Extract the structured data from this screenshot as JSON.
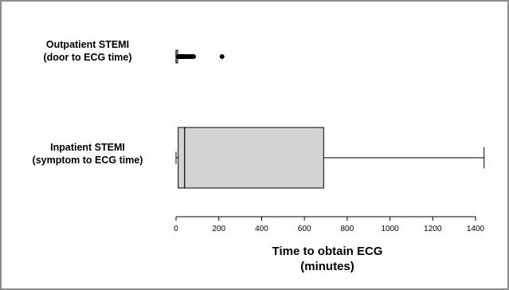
{
  "chart_data": {
    "type": "boxplot",
    "x_axis": {
      "title_lines": [
        "Time to obtain ECG",
        "(minutes)"
      ],
      "range": [
        0,
        1450
      ],
      "ticks": [
        0,
        200,
        400,
        600,
        800,
        1000,
        1200,
        1400
      ]
    },
    "categories": [
      {
        "label_lines": [
          "Outpatient STEMI",
          "(door to ECG time)"
        ],
        "min": 0,
        "q1": 0,
        "median": 0,
        "q3": 5,
        "whisker_high": 10,
        "outliers": [
          12,
          15,
          18,
          20,
          22,
          25,
          28,
          30,
          33,
          36,
          40,
          45,
          50,
          55,
          60,
          68,
          75,
          82,
          215
        ]
      },
      {
        "label_lines": [
          "Inpatient STEMI",
          "(symptom to ECG time)"
        ],
        "min": 0,
        "q1": 10,
        "median": 40,
        "q3": 690,
        "max": 1440,
        "outliers": []
      }
    ],
    "colors": {
      "box_fill": "#d3d3d3",
      "stroke": "#000000"
    }
  }
}
